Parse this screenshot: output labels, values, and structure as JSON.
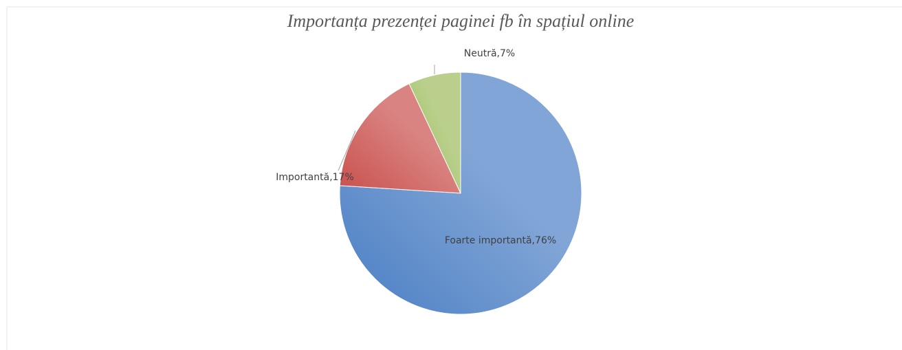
{
  "chart_data": {
    "type": "pie",
    "title": "Importanța prezenței paginei fb în spațiul online",
    "values": [
      76,
      17,
      7
    ],
    "value_labels": [
      "Foarte importantă,76%",
      "Importantă,17%",
      "Neutră,7%"
    ],
    "colors": [
      "#4a7ec4",
      "#c9504d",
      "#9bbb59"
    ]
  }
}
